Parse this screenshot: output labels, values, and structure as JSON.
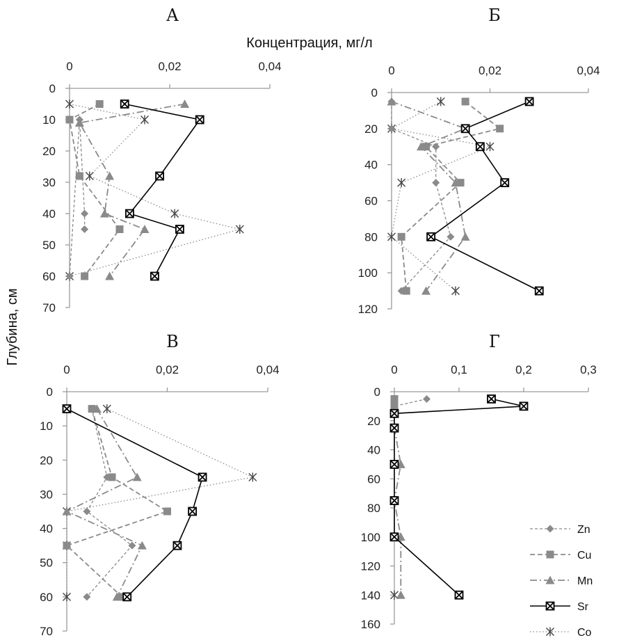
{
  "figure": {
    "x_axis_title": "Концентрация, мг/л",
    "y_axis_title": "Глубина, см"
  },
  "colors": {
    "axis": "#9a9a9a",
    "Zn": "#8a8a8a",
    "Cu": "#8a8a8a",
    "Mn": "#8a8a8a",
    "Sr": "#000000",
    "Co": "#8a8a8a"
  },
  "legend": [
    "Zn",
    "Cu",
    "Mn",
    "Sr",
    "Co"
  ],
  "chart_data": [
    {
      "type": "line",
      "panel": "А",
      "title": "А",
      "xlim": [
        0,
        0.04
      ],
      "xticks": [
        "0",
        "0,02",
        "0,04"
      ],
      "ylim": [
        0,
        70
      ],
      "yticks": [
        "0",
        "10",
        "20",
        "30",
        "40",
        "50",
        "60",
        "70"
      ],
      "series": [
        {
          "name": "Zn",
          "points": [
            [
              0.003,
              45
            ],
            [
              0.003,
              40
            ],
            [
              0.002,
              10
            ],
            [
              0.0,
              60
            ]
          ]
        },
        {
          "name": "Cu",
          "points": [
            [
              0.006,
              5
            ],
            [
              0.0,
              10
            ],
            [
              0.002,
              28
            ],
            [
              0.01,
              45
            ],
            [
              0.003,
              60
            ]
          ]
        },
        {
          "name": "Mn",
          "points": [
            [
              0.023,
              5
            ],
            [
              0.002,
              11
            ],
            [
              0.008,
              28
            ],
            [
              0.007,
              40
            ],
            [
              0.015,
              45
            ],
            [
              0.008,
              60
            ]
          ]
        },
        {
          "name": "Sr",
          "points": [
            [
              0.011,
              5
            ],
            [
              0.026,
              10
            ],
            [
              0.018,
              28
            ],
            [
              0.012,
              40
            ],
            [
              0.022,
              45
            ],
            [
              0.017,
              60
            ]
          ]
        },
        {
          "name": "Co",
          "points": [
            [
              0.0,
              5
            ],
            [
              0.015,
              10
            ],
            [
              0.004,
              28
            ],
            [
              0.021,
              40
            ],
            [
              0.034,
              45
            ],
            [
              0.0,
              60
            ]
          ]
        }
      ]
    },
    {
      "type": "line",
      "panel": "Б",
      "title": "Б",
      "xlim": [
        0,
        0.04
      ],
      "xticks": [
        "0",
        "0,02",
        "0,04"
      ],
      "ylim": [
        0,
        120
      ],
      "yticks": [
        "0",
        "20",
        "40",
        "60",
        "80",
        "100",
        "120"
      ],
      "series": [
        {
          "name": "Zn",
          "points": [
            [
              0.0,
              5
            ],
            [
              0.0,
              20
            ],
            [
              0.009,
              30
            ],
            [
              0.009,
              50
            ],
            [
              0.012,
              80
            ],
            [
              0.002,
              110
            ]
          ]
        },
        {
          "name": "Cu",
          "points": [
            [
              0.015,
              5
            ],
            [
              0.022,
              20
            ],
            [
              0.007,
              30
            ],
            [
              0.014,
              50
            ],
            [
              0.002,
              80
            ],
            [
              0.003,
              110
            ]
          ]
        },
        {
          "name": "Mn",
          "points": [
            [
              0.0,
              5
            ],
            [
              0.015,
              20
            ],
            [
              0.006,
              30
            ],
            [
              0.013,
              50
            ],
            [
              0.015,
              80
            ],
            [
              0.007,
              110
            ]
          ]
        },
        {
          "name": "Sr",
          "points": [
            [
              0.028,
              5
            ],
            [
              0.015,
              20
            ],
            [
              0.018,
              30
            ],
            [
              0.023,
              50
            ],
            [
              0.008,
              80
            ],
            [
              0.03,
              110
            ]
          ]
        },
        {
          "name": "Co",
          "points": [
            [
              0.01,
              5
            ],
            [
              0.0,
              20
            ],
            [
              0.02,
              30
            ],
            [
              0.002,
              50
            ],
            [
              0.0,
              80
            ],
            [
              0.013,
              110
            ]
          ]
        }
      ]
    },
    {
      "type": "line",
      "panel": "В",
      "title": "В",
      "xlim": [
        0,
        0.04
      ],
      "xticks": [
        "0",
        "0,02",
        "0,04"
      ],
      "ylim": [
        0,
        70
      ],
      "yticks": [
        "0",
        "10",
        "20",
        "30",
        "40",
        "50",
        "60",
        "70"
      ],
      "series": [
        {
          "name": "Zn",
          "points": [
            [
              0.005,
              5
            ],
            [
              0.008,
              25
            ],
            [
              0.004,
              35
            ],
            [
              0.013,
              45
            ],
            [
              0.004,
              60
            ]
          ]
        },
        {
          "name": "Cu",
          "points": [
            [
              0.005,
              5
            ],
            [
              0.009,
              25
            ],
            [
              0.02,
              35
            ],
            [
              0.0,
              45
            ],
            [
              0.011,
              60
            ]
          ]
        },
        {
          "name": "Mn",
          "points": [
            [
              0.006,
              5
            ],
            [
              0.014,
              25
            ],
            [
              0.0,
              35
            ],
            [
              0.015,
              45
            ],
            [
              0.01,
              60
            ]
          ]
        },
        {
          "name": "Sr",
          "points": [
            [
              0.0,
              5
            ],
            [
              0.027,
              25
            ],
            [
              0.025,
              35
            ],
            [
              0.022,
              45
            ],
            [
              0.012,
              60
            ]
          ]
        },
        {
          "name": "Co",
          "points": [
            [
              0.008,
              5
            ],
            [
              0.037,
              25
            ],
            [
              0.0,
              35
            ],
            [
              0.0,
              45
            ],
            [
              0.0,
              60
            ]
          ]
        }
      ]
    },
    {
      "type": "line",
      "panel": "Г",
      "title": "Г",
      "xlim": [
        0,
        0.3
      ],
      "xticks": [
        "0",
        "0,1",
        "0,2",
        "0,3"
      ],
      "ylim": [
        0,
        160
      ],
      "yticks": [
        "0",
        "20",
        "40",
        "60",
        "80",
        "100",
        "120",
        "140",
        "160"
      ],
      "series": [
        {
          "name": "Zn",
          "points": [
            [
              0.05,
              5
            ],
            [
              0.0,
              10
            ]
          ]
        },
        {
          "name": "Cu",
          "points": [
            [
              0.0,
              5
            ],
            [
              0.0,
              10
            ]
          ]
        },
        {
          "name": "Mn",
          "points": [
            [
              0.0,
              15
            ],
            [
              0.0,
              25
            ],
            [
              0.01,
              50
            ],
            [
              0.0,
              75
            ],
            [
              0.01,
              100
            ],
            [
              0.01,
              140
            ]
          ]
        },
        {
          "name": "Sr",
          "points": [
            [
              0.15,
              5
            ],
            [
              0.2,
              10
            ],
            [
              0.0,
              15
            ],
            [
              0.0,
              25
            ],
            [
              0.0,
              50
            ],
            [
              0.0,
              75
            ],
            [
              0.0,
              100
            ],
            [
              0.1,
              140
            ]
          ]
        },
        {
          "name": "Co",
          "points": [
            [
              0.0,
              140
            ]
          ]
        }
      ]
    }
  ]
}
